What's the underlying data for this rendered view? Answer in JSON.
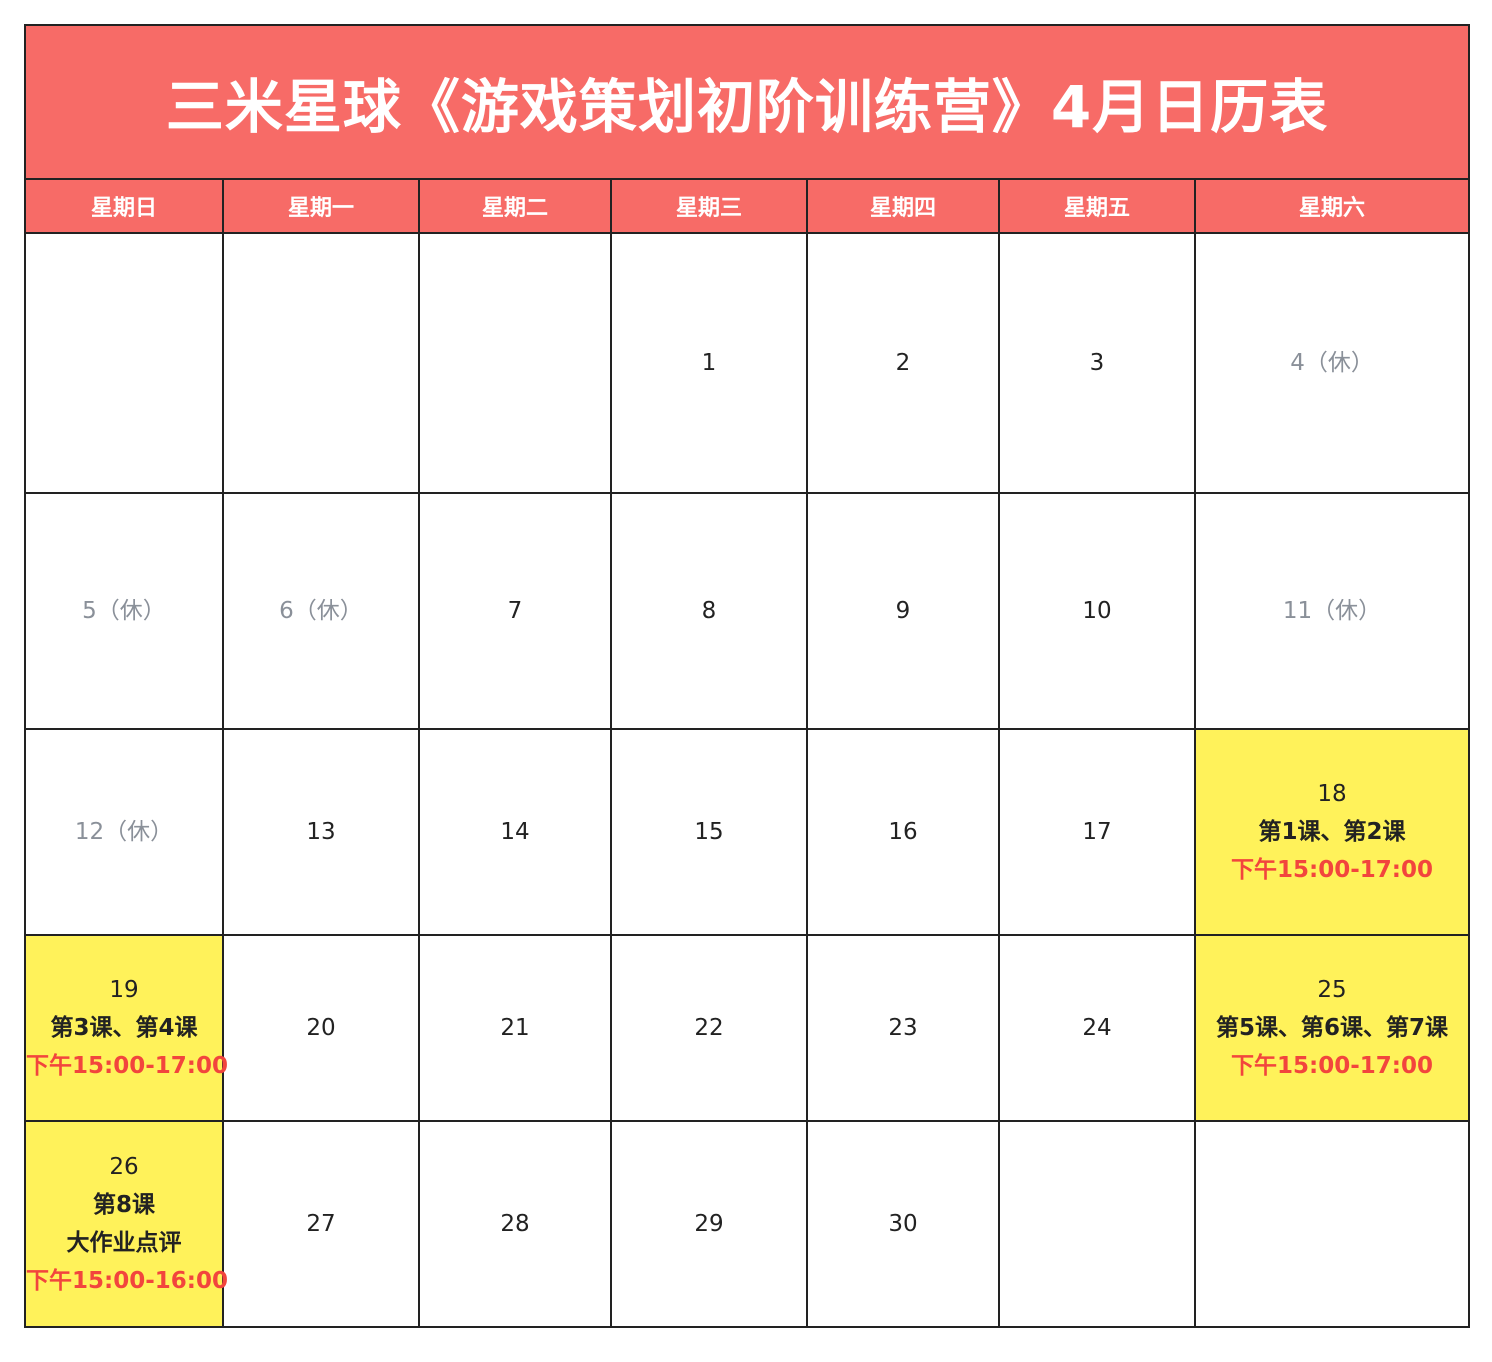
{
  "colors": {
    "header_bg": "#F76B67",
    "highlight_bg": "#FFF25A",
    "time_text": "#F2453D",
    "holiday_text": "#8A9099",
    "border": "#222222"
  },
  "title": "三米星球《游戏策划初阶训练营》4月日历表",
  "weekdays": [
    "星期日",
    "星期一",
    "星期二",
    "星期三",
    "星期四",
    "星期五",
    "星期六"
  ],
  "weeks": [
    [
      {
        "lines": []
      },
      {
        "lines": []
      },
      {
        "lines": []
      },
      {
        "lines": [
          {
            "t": "1"
          }
        ]
      },
      {
        "lines": [
          {
            "t": "2"
          }
        ]
      },
      {
        "lines": [
          {
            "t": "3"
          }
        ]
      },
      {
        "lines": [
          {
            "t": "4（休）",
            "k": "holiday"
          }
        ]
      }
    ],
    [
      {
        "lines": [
          {
            "t": "5（休）",
            "k": "holiday"
          }
        ]
      },
      {
        "lines": [
          {
            "t": "6（休）",
            "k": "holiday"
          }
        ]
      },
      {
        "lines": [
          {
            "t": "7"
          }
        ]
      },
      {
        "lines": [
          {
            "t": "8"
          }
        ]
      },
      {
        "lines": [
          {
            "t": "9"
          }
        ]
      },
      {
        "lines": [
          {
            "t": "10"
          }
        ]
      },
      {
        "lines": [
          {
            "t": "11（休）",
            "k": "holiday"
          }
        ]
      }
    ],
    [
      {
        "lines": [
          {
            "t": "12（休）",
            "k": "holiday"
          }
        ]
      },
      {
        "lines": [
          {
            "t": "13"
          }
        ]
      },
      {
        "lines": [
          {
            "t": "14"
          }
        ]
      },
      {
        "lines": [
          {
            "t": "15"
          }
        ]
      },
      {
        "lines": [
          {
            "t": "16"
          }
        ]
      },
      {
        "lines": [
          {
            "t": "17"
          }
        ]
      },
      {
        "highlight": true,
        "lines": [
          {
            "t": "18"
          },
          {
            "t": "第1课、第2课",
            "k": "bold"
          },
          {
            "t": "下午15:00-17:00",
            "k": "time"
          }
        ]
      }
    ],
    [
      {
        "highlight": true,
        "lines": [
          {
            "t": "19"
          },
          {
            "t": "第3课、第4课",
            "k": "bold"
          },
          {
            "t": "下午15:00-17:00",
            "k": "time"
          }
        ]
      },
      {
        "lines": [
          {
            "t": "20"
          }
        ]
      },
      {
        "lines": [
          {
            "t": "21"
          }
        ]
      },
      {
        "lines": [
          {
            "t": "22"
          }
        ]
      },
      {
        "lines": [
          {
            "t": "23"
          }
        ]
      },
      {
        "lines": [
          {
            "t": "24"
          }
        ]
      },
      {
        "highlight": true,
        "lines": [
          {
            "t": "25"
          },
          {
            "t": "第5课、第6课、第7课",
            "k": "bold"
          },
          {
            "t": "下午15:00-17:00",
            "k": "time"
          }
        ]
      }
    ],
    [
      {
        "highlight": true,
        "lines": [
          {
            "t": "26"
          },
          {
            "t": "第8课",
            "k": "bold"
          },
          {
            "t": "大作业点评",
            "k": "bold"
          },
          {
            "t": "下午15:00-16:00",
            "k": "time"
          }
        ]
      },
      {
        "lines": [
          {
            "t": "27"
          }
        ]
      },
      {
        "lines": [
          {
            "t": "28"
          }
        ]
      },
      {
        "lines": [
          {
            "t": "29"
          }
        ]
      },
      {
        "lines": [
          {
            "t": "30"
          }
        ]
      },
      {
        "lines": []
      },
      {
        "lines": []
      }
    ]
  ]
}
